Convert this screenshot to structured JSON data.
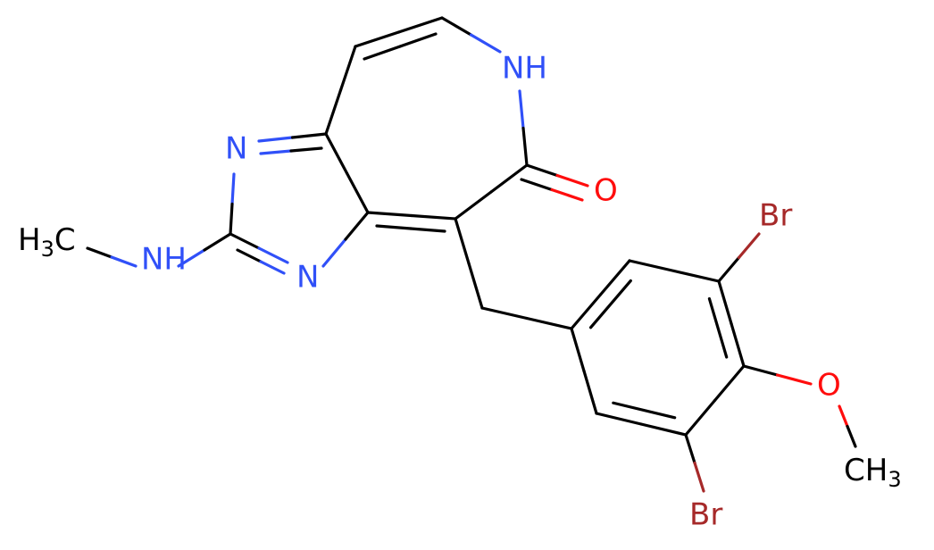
{
  "atoms": [
    {
      "text": "H",
      "sub": "3",
      "tail": "C"
    },
    {
      "text": "NH"
    },
    {
      "text": "N"
    },
    {
      "text": "N"
    },
    {
      "text": "NH"
    },
    {
      "text": "O"
    },
    {
      "text": "Br"
    },
    {
      "text": "O"
    },
    {
      "text": "CH",
      "sub": "3"
    },
    {
      "text": "Br"
    }
  ]
}
